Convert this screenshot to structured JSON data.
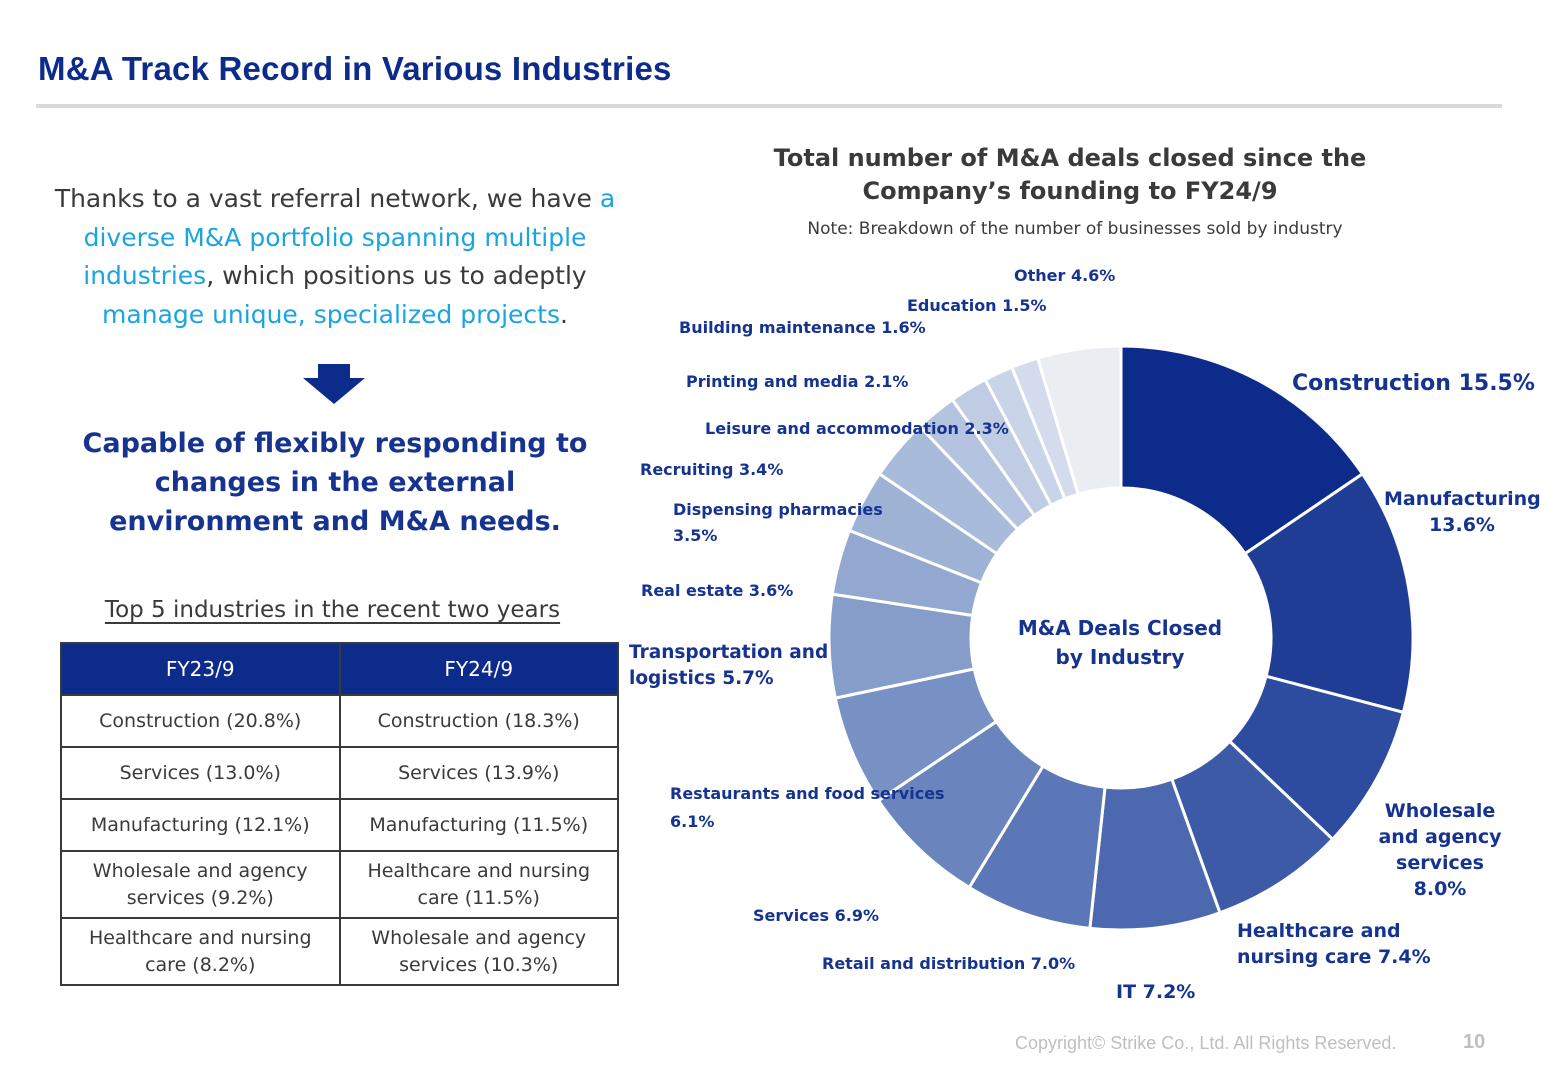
{
  "header": {
    "title": "M&A Track Record in Various Industries"
  },
  "intro": {
    "t1": "Thanks to a vast referral network, we have ",
    "h1": "a diverse M&A portfolio spanning multiple industries",
    "t2": ", which positions us to adeptly ",
    "h2": "manage unique, specialized projects",
    "t3": "."
  },
  "capable": {
    "line1": "Capable of flexibly responding to",
    "line2": "changes in the external",
    "line3": "environment and M&A needs."
  },
  "top5": {
    "heading": "Top 5 industries in the recent two years",
    "columns": [
      "FY23/9",
      "FY24/9"
    ],
    "rows": [
      [
        "Construction (20.8%)",
        "Construction (18.3%)"
      ],
      [
        "Services (13.0%)",
        "Services (13.9%)"
      ],
      [
        "Manufacturing (12.1%)",
        "Manufacturing (11.5%)"
      ],
      [
        "Wholesale and agency services (9.2%)",
        "Healthcare and nursing care (11.5%)"
      ],
      [
        "Healthcare and nursing care (8.2%)",
        "Wholesale and agency services (10.3%)"
      ]
    ]
  },
  "chart_data": {
    "type": "pie",
    "title": "Total number of M&A deals closed since the Company’s founding to FY24/9",
    "subtitle": "Note: Breakdown of the number of businesses sold by industry",
    "center_label": [
      "M&A Deals Closed",
      "by Industry"
    ],
    "categories": [
      "Construction",
      "Manufacturing",
      "Wholesale and agency services",
      "Healthcare and nursing care",
      "IT",
      "Retail and distribution",
      "Services",
      "Restaurants and food services",
      "Transportation and logistics",
      "Real estate",
      "Dispensing pharmacies",
      "Recruiting",
      "Leisure and accommodation",
      "Printing and media",
      "Building maintenance",
      "Education",
      "Other"
    ],
    "values": [
      15.5,
      13.6,
      8.0,
      7.4,
      7.2,
      7.0,
      6.9,
      6.1,
      5.7,
      3.6,
      3.5,
      3.4,
      2.3,
      2.1,
      1.6,
      1.5,
      4.6
    ],
    "colors": [
      "#0d2b8a",
      "#203d95",
      "#2d4b9f",
      "#3d5aa7",
      "#4c69b0",
      "#5b77b8",
      "#6a84be",
      "#7891c5",
      "#869dca",
      "#93a8d0",
      "#9eb2d5",
      "#a9bbda",
      "#b4c3df",
      "#bfcce4",
      "#c9d4e8",
      "#d3dbed",
      "#eaedf2"
    ],
    "labels": [
      [
        "Construction 15.5%"
      ],
      [
        "Manufacturing",
        "13.6%"
      ],
      [
        "Wholesale",
        "and agency",
        "services",
        "8.0%"
      ],
      [
        "Healthcare and",
        "nursing care 7.4%"
      ],
      [
        "IT 7.2%"
      ],
      [
        "Retail and distribution 7.0%"
      ],
      [
        "Services 6.9%"
      ],
      [
        "Restaurants and food services",
        "6.1%"
      ],
      [
        "Transportation and",
        "logistics 5.7%"
      ],
      [
        "Real estate 3.6%"
      ],
      [
        "Dispensing pharmacies",
        "3.5%"
      ],
      [
        "Recruiting 3.4%"
      ],
      [
        "Leisure and accommodation 2.3%"
      ],
      [
        "Printing and media 2.1%"
      ],
      [
        "Building maintenance 1.6%"
      ],
      [
        "Education  1.5%"
      ],
      [
        "Other 4.6%"
      ]
    ]
  },
  "footer": {
    "copyright": "Copyright© Strike Co., Ltd. All Rights Reserved.",
    "page": "10"
  }
}
